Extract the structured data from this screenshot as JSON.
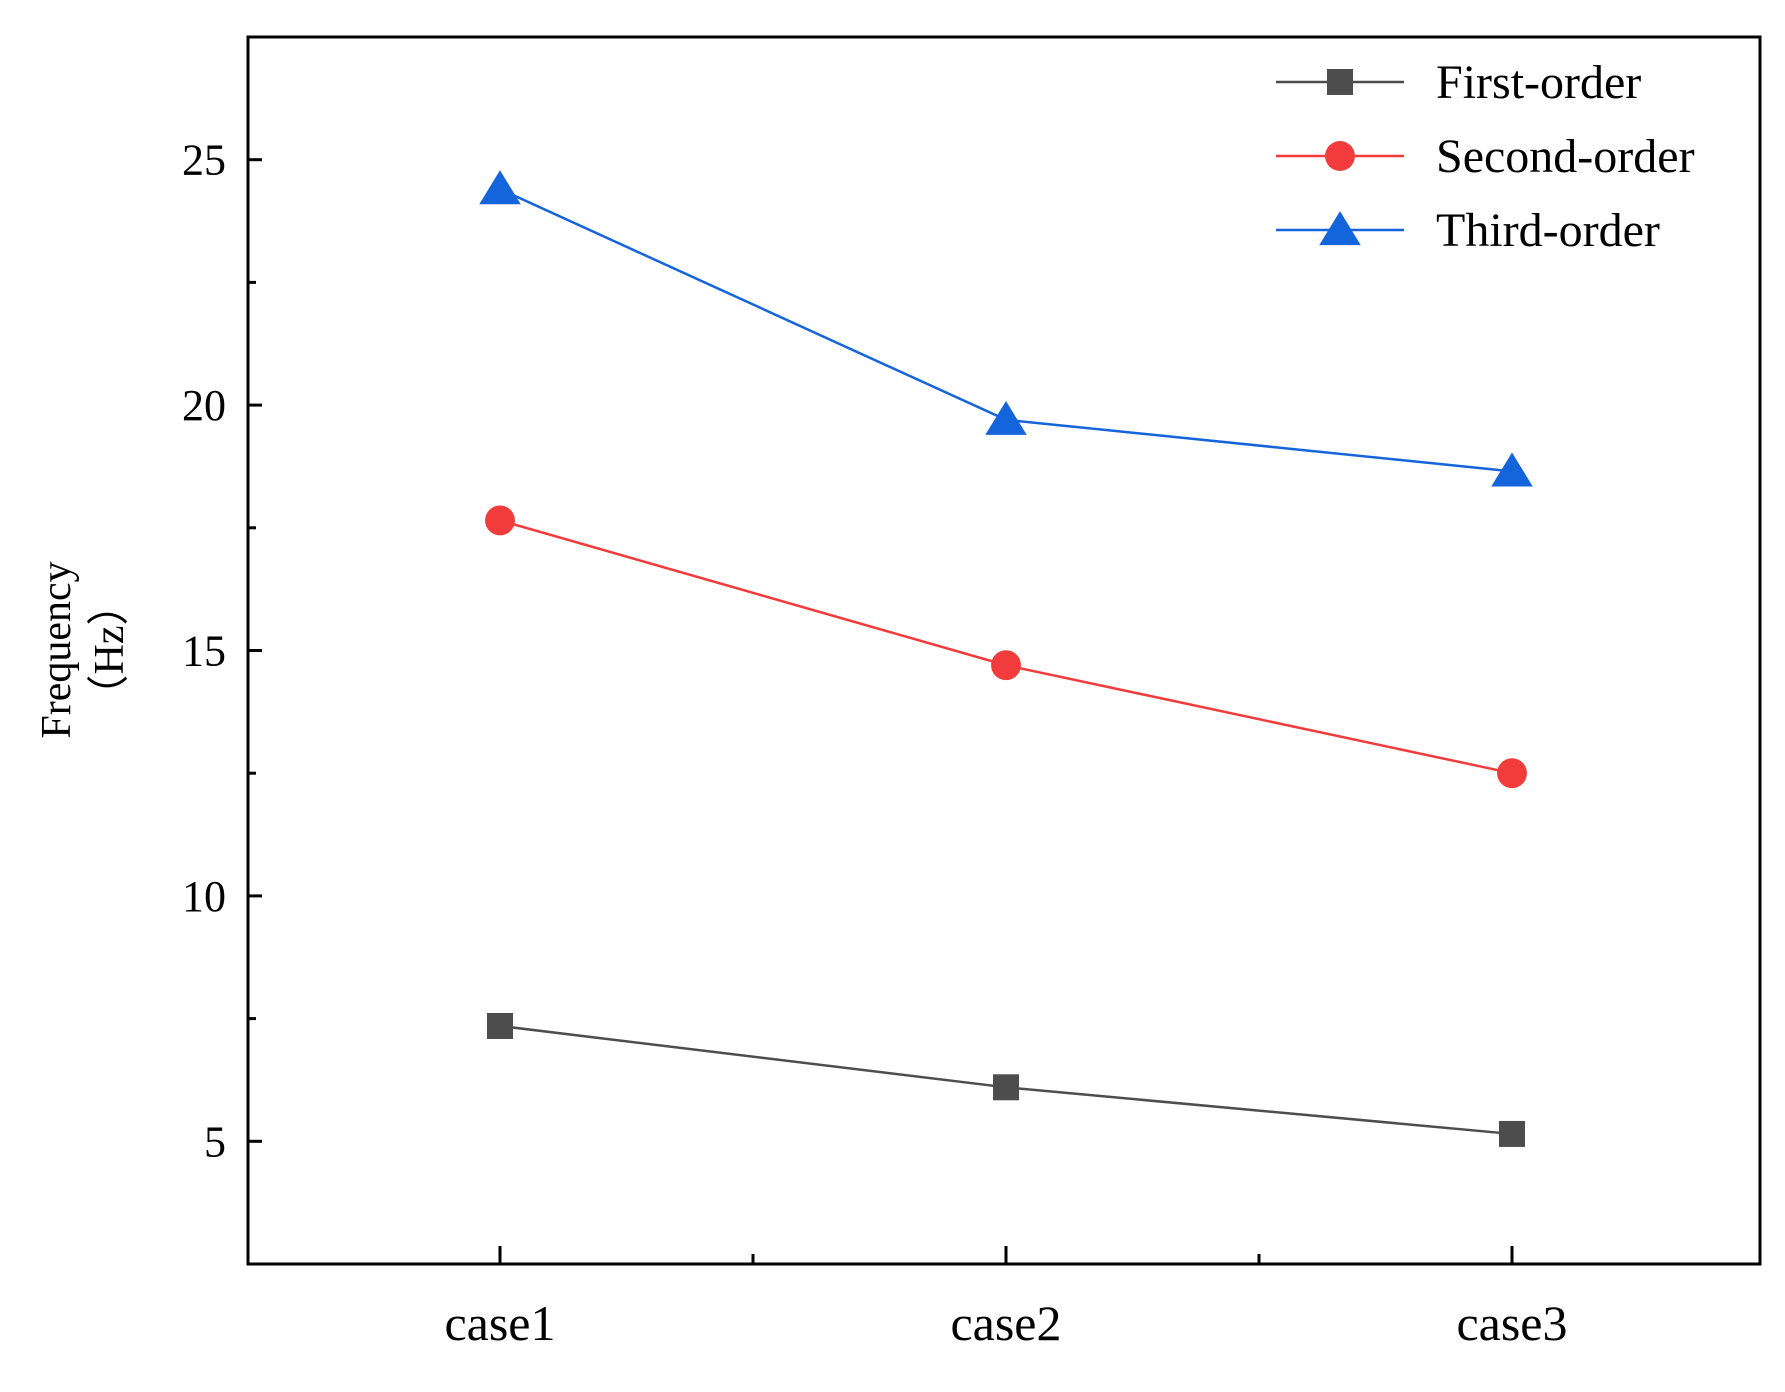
{
  "chart_data": {
    "type": "line",
    "categories": [
      "case1",
      "case2",
      "case3"
    ],
    "series": [
      {
        "name": "First-order",
        "values": [
          7.35,
          6.1,
          5.15
        ],
        "color": "#4d4d4d",
        "marker": "square"
      },
      {
        "name": "Second-order",
        "values": [
          17.65,
          14.7,
          12.5
        ],
        "color": "#f23c3c",
        "marker": "circle"
      },
      {
        "name": "Third-order",
        "values": [
          24.4,
          19.7,
          18.65
        ],
        "color": "#1464dc",
        "marker": "triangle"
      }
    ],
    "ylabel_line1": "Frequency",
    "ylabel_line2": "（Hz）",
    "ylim": [
      2.5,
      27.5
    ],
    "yticks": [
      5,
      10,
      15,
      20,
      25
    ],
    "legend_position": "top-right",
    "grid": false
  }
}
